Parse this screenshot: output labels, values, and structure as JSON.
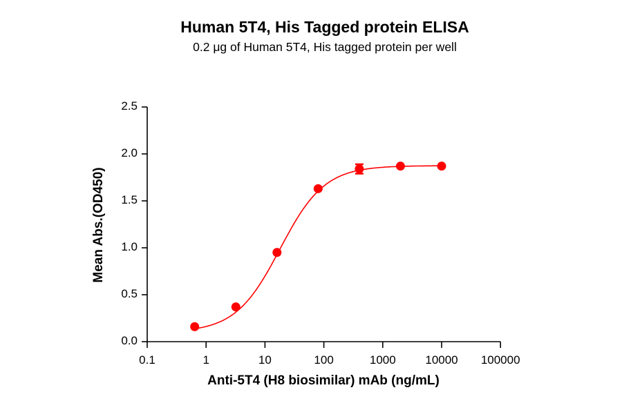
{
  "chart_data": {
    "type": "scatter",
    "title": "Human 5T4, His Tagged protein ELISA",
    "subtitle": "0.2 μg of Human 5T4, His tagged protein per well",
    "xlabel": "Anti-5T4 (H8 biosimilar) mAb (ng/mL)",
    "ylabel": "Mean Abs.(OD450)",
    "xscale": "log",
    "xlim": [
      0.1,
      100000
    ],
    "ylim": [
      0.0,
      2.5
    ],
    "x_tick_labels": [
      "0.1",
      "1",
      "10",
      "100",
      "1000",
      "10000",
      "100000"
    ],
    "y_tick_labels": [
      "0.0",
      "0.5",
      "1.0",
      "1.5",
      "2.0",
      "2.5"
    ],
    "grid": false,
    "legend": null,
    "series": [
      {
        "name": "Human 5T4, His Tagged protein",
        "color": "#ff0000",
        "marker": "circle",
        "fit": "4-parameter logistic curve",
        "x": [
          0.64,
          3.2,
          16,
          80,
          400,
          2000,
          10000
        ],
        "y": [
          0.16,
          0.37,
          0.95,
          1.63,
          1.84,
          1.87,
          1.87
        ],
        "error": [
          0.01,
          0.01,
          0.01,
          0.01,
          0.05,
          0.01,
          0.01
        ]
      }
    ]
  }
}
